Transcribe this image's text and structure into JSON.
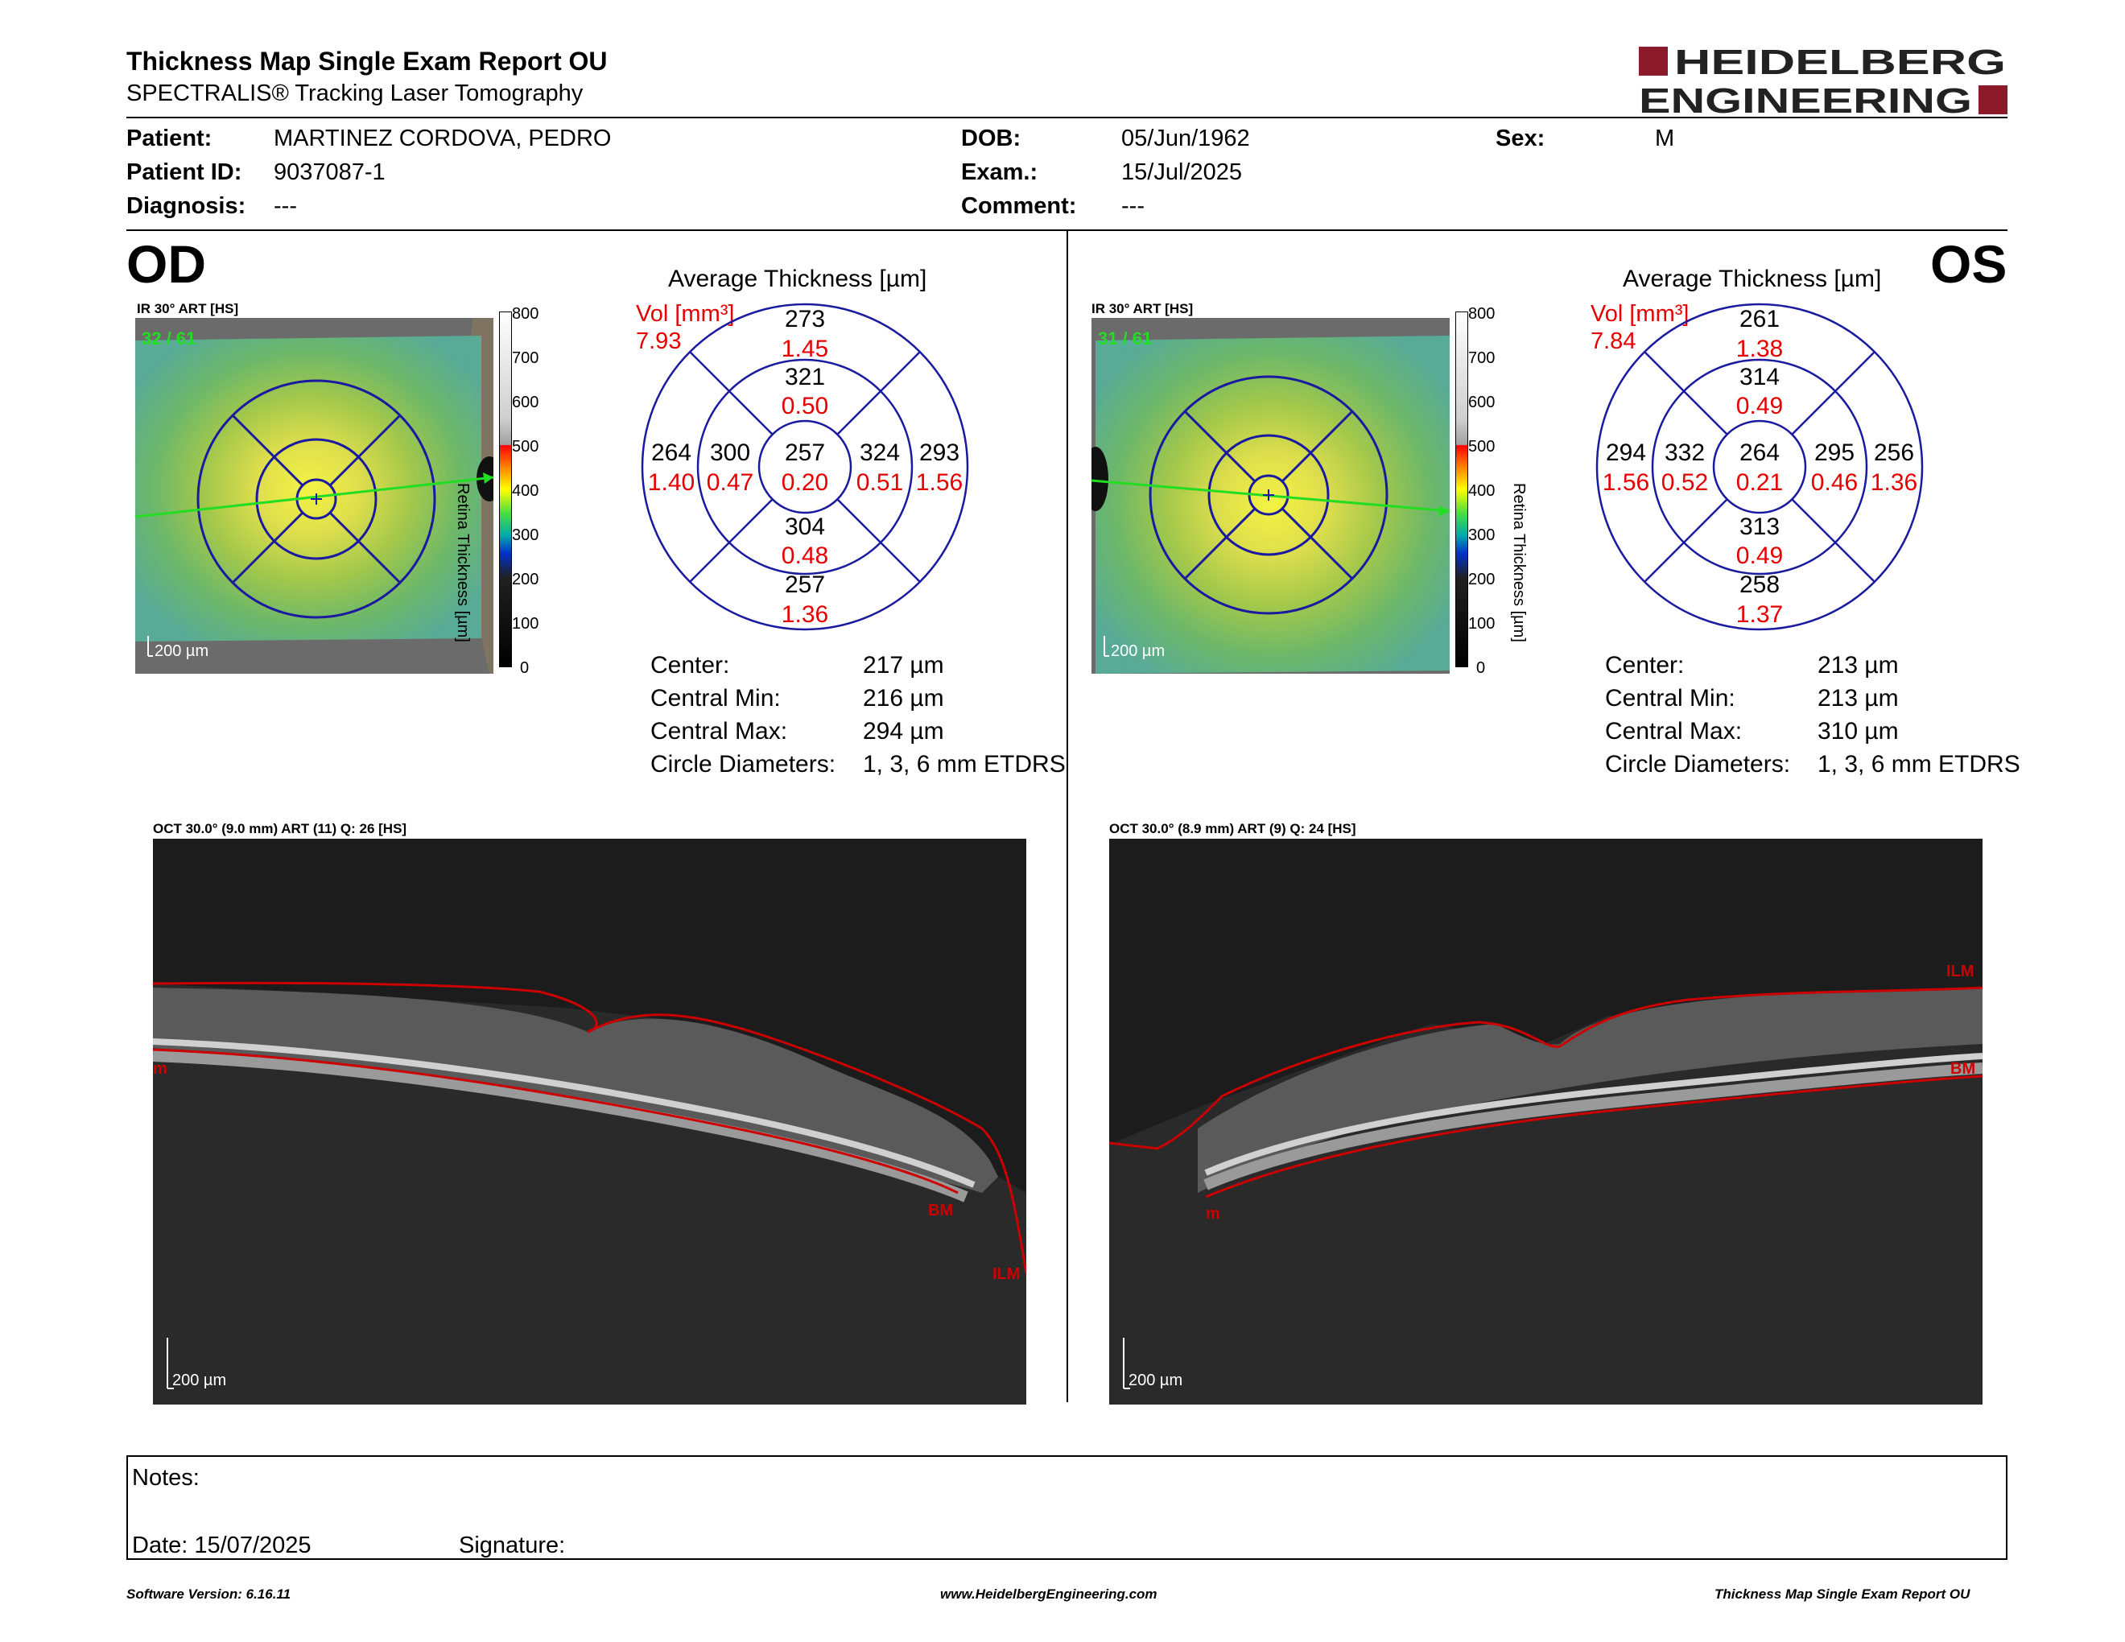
{
  "header": {
    "title": "Thickness Map Single Exam Report OU",
    "subtitle": "SPECTRALIS® Tracking Laser Tomography",
    "logo_line1": "HEIDELBERG",
    "logo_line2": "ENGINEERING",
    "logo_color": "#8b1a2b"
  },
  "patient": {
    "patient_label": "Patient:",
    "patient_value": "MARTINEZ CORDOVA, PEDRO",
    "id_label": "Patient ID:",
    "id_value": "9037087-1",
    "diag_label": "Diagnosis:",
    "diag_value": "---",
    "dob_label": "DOB:",
    "dob_value": "05/Jun/1962",
    "exam_label": "Exam.:",
    "exam_value": "15/Jul/2025",
    "comment_label": "Comment:",
    "comment_value": "---",
    "sex_label": "Sex:",
    "sex_value": "M"
  },
  "od": {
    "eye_label": "OD",
    "ir_title": "IR 30° ART [HS]",
    "frame_count": "32 / 61",
    "scale": "200 µm",
    "colorbar_ticks": [
      "800",
      "700",
      "600",
      "500",
      "400",
      "300",
      "200",
      "100",
      "0"
    ],
    "colorbar_label": "Retina Thickness [µm]",
    "avg_title": "Average Thickness [µm]",
    "vol_label": "Vol [mm³]",
    "vol_value": "7.93",
    "sectors": {
      "outer_sup_t": "273",
      "outer_sup_v": "1.45",
      "inner_sup_t": "321",
      "inner_sup_v": "0.50",
      "outer_left_t": "264",
      "outer_left_v": "1.40",
      "inner_left_t": "300",
      "inner_left_v": "0.47",
      "center_t": "257",
      "center_v": "0.20",
      "inner_right_t": "324",
      "inner_right_v": "0.51",
      "outer_right_t": "293",
      "outer_right_v": "1.56",
      "inner_inf_t": "304",
      "inner_inf_v": "0.48",
      "outer_inf_t": "257",
      "outer_inf_v": "1.36"
    },
    "stats": {
      "center_label": "Center:",
      "center_value": "217 µm",
      "min_label": "Central Min:",
      "min_value": "216 µm",
      "max_label": "Central Max:",
      "max_value": "294 µm",
      "diam_label": "Circle Diameters:",
      "diam_value": "1, 3, 6 mm ETDRS"
    },
    "oct_title": "OCT 30.0° (9.0 mm) ART (11) Q: 26 [HS]",
    "oct_scale": "200 µm",
    "label_ilm": "ILM",
    "label_bm": "BM",
    "label_m": "m"
  },
  "os": {
    "eye_label": "OS",
    "ir_title": "IR 30° ART [HS]",
    "frame_count": "31 / 61",
    "scale": "200 µm",
    "colorbar_ticks": [
      "800",
      "700",
      "600",
      "500",
      "400",
      "300",
      "200",
      "100",
      "0"
    ],
    "colorbar_label": "Retina Thickness [µm]",
    "avg_title": "Average Thickness [µm]",
    "vol_label": "Vol [mm³]",
    "vol_value": "7.84",
    "sectors": {
      "outer_sup_t": "261",
      "outer_sup_v": "1.38",
      "inner_sup_t": "314",
      "inner_sup_v": "0.49",
      "outer_left_t": "294",
      "outer_left_v": "1.56",
      "inner_left_t": "332",
      "inner_left_v": "0.52",
      "center_t": "264",
      "center_v": "0.21",
      "inner_right_t": "295",
      "inner_right_v": "0.46",
      "outer_right_t": "256",
      "outer_right_v": "1.36",
      "inner_inf_t": "313",
      "inner_inf_v": "0.49",
      "outer_inf_t": "258",
      "outer_inf_v": "1.37"
    },
    "stats": {
      "center_label": "Center:",
      "center_value": "213 µm",
      "min_label": "Central Min:",
      "min_value": "213 µm",
      "max_label": "Central Max:",
      "max_value": "310 µm",
      "diam_label": "Circle Diameters:",
      "diam_value": "1, 3, 6 mm ETDRS"
    },
    "oct_title": "OCT 30.0° (8.9 mm) ART (9) Q: 24 [HS]",
    "oct_scale": "200 µm",
    "label_ilm": "ILM",
    "label_bm": "BM",
    "label_m": "m"
  },
  "notes": {
    "notes_label": "Notes:",
    "date_label": "Date: 15/07/2025",
    "signature_label": "Signature:"
  },
  "footer": {
    "software": "Software Version: 6.16.11",
    "website": "www.HeidelbergEngineering.com",
    "report": "Thickness Map Single Exam Report OU"
  },
  "colors": {
    "sector_blue": "#1a1aa0",
    "value_red": "#e60000",
    "segmentation_red": "#cc0000",
    "fixation_green": "#22dd22"
  }
}
